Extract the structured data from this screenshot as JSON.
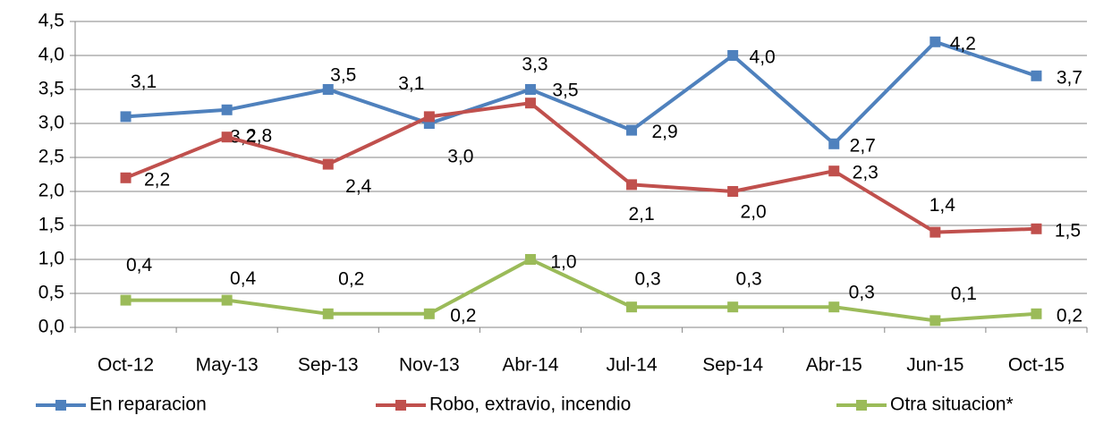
{
  "chart_data": {
    "type": "line",
    "categories": [
      "Oct-12",
      "May-13",
      "Sep-13",
      "Nov-13",
      "Abr-14",
      "Jul-14",
      "Sep-14",
      "Abr-15",
      "Jun-15",
      "Oct-15"
    ],
    "series": [
      {
        "name": "En reparacion",
        "color": "#4f81bd",
        "values": [
          3.1,
          3.2,
          3.5,
          3.0,
          3.5,
          2.9,
          4.0,
          2.7,
          4.2,
          3.7
        ],
        "value_labels": [
          "3,1",
          "3,2",
          "3,5",
          "3,0",
          "3,5",
          "2,9",
          "4,0",
          "2,7",
          "4,2",
          "3,7"
        ]
      },
      {
        "name": "Robo, extravio, incendio",
        "color": "#c0504d",
        "values": [
          2.2,
          2.8,
          2.4,
          3.1,
          3.3,
          2.1,
          2.0,
          2.3,
          1.4,
          1.45
        ],
        "value_labels": [
          "2,2",
          "2,8",
          "2,4",
          "3,1",
          "3,3",
          "2,1",
          "2,0",
          "2,3",
          "1,4",
          "1,5"
        ]
      },
      {
        "name": "Otra situacion*",
        "color": "#9bbb59",
        "values": [
          0.4,
          0.4,
          0.2,
          0.2,
          1.0,
          0.3,
          0.3,
          0.3,
          0.1,
          0.2
        ],
        "value_labels": [
          "0,4",
          "0,4",
          "0,2",
          "0,2",
          "1,0",
          "0,3",
          "0,3",
          "0,3",
          "0,1",
          "0,2"
        ]
      }
    ],
    "ylim": [
      0,
      4.5
    ],
    "yticks": [
      {
        "value": 0,
        "label": "0,0"
      },
      {
        "value": 0.5,
        "label": "0,5"
      },
      {
        "value": 1,
        "label": "1,0"
      },
      {
        "value": 1.5,
        "label": "1,5"
      },
      {
        "value": 2,
        "label": "2,0"
      },
      {
        "value": 2.5,
        "label": "2,5"
      },
      {
        "value": 3,
        "label": "3,0"
      },
      {
        "value": 3.5,
        "label": "3,5"
      },
      {
        "value": 4,
        "label": "4,0"
      },
      {
        "value": 4.5,
        "label": "4,5"
      }
    ],
    "grid": true,
    "legend": "bottom"
  }
}
